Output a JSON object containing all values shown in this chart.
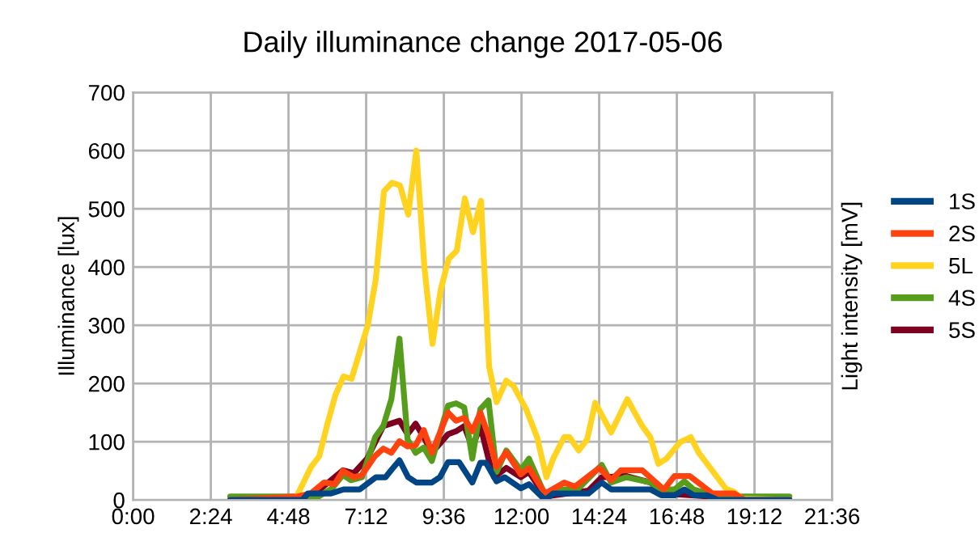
{
  "chart_data": {
    "type": "line",
    "title": "Daily illuminance change 2017-05-06",
    "ylabel": "Illuminance [lux]",
    "y2label": "Light intensity [mV]",
    "xlim": [
      0,
      21.6
    ],
    "xticks": [
      {
        "value": 0,
        "label": "0:00"
      },
      {
        "value": 2.4,
        "label": "2:24"
      },
      {
        "value": 4.8,
        "label": "4:48"
      },
      {
        "value": 7.2,
        "label": "7:12"
      },
      {
        "value": 9.6,
        "label": "9:36"
      },
      {
        "value": 12,
        "label": "12:00"
      },
      {
        "value": 14.4,
        "label": "14:24"
      },
      {
        "value": 16.8,
        "label": "16:48"
      },
      {
        "value": 19.2,
        "label": "19:12"
      },
      {
        "value": 21.6,
        "label": "21:36"
      }
    ],
    "ylim": [
      0,
      700
    ],
    "yticks": [
      0,
      100,
      200,
      300,
      400,
      500,
      600,
      700
    ],
    "grid": true,
    "legend": "right",
    "marker": "none",
    "line_style": "solid",
    "series": [
      {
        "name": "1S",
        "color": "#004586",
        "x": [
          3.0,
          5.23,
          5.4,
          6.1,
          6.5,
          7.0,
          7.5,
          7.8,
          8.0,
          8.23,
          8.5,
          8.75,
          9.23,
          9.48,
          9.73,
          10.07,
          10.48,
          10.73,
          10.9,
          11.23,
          11.48,
          11.98,
          12.23,
          12.73,
          12.98,
          14.07,
          14.48,
          14.77,
          15.98,
          16.32,
          16.73,
          17.03,
          17.32,
          17.73,
          18.07,
          20.28
        ],
        "values": [
          0,
          0,
          11,
          11,
          18,
          18,
          39,
          39,
          53,
          68,
          39,
          30,
          30,
          39,
          65,
          65,
          30,
          64,
          64,
          32,
          39,
          20,
          27,
          0,
          11,
          11,
          30,
          18,
          18,
          8,
          8,
          18,
          8,
          8,
          0,
          0
        ]
      },
      {
        "name": "2S",
        "color": "#ff420e",
        "x": [
          3.0,
          5.07,
          5.48,
          5.9,
          6.23,
          6.48,
          6.82,
          7.07,
          7.48,
          7.73,
          7.98,
          8.23,
          8.48,
          8.73,
          8.98,
          9.23,
          9.73,
          9.98,
          10.23,
          10.48,
          10.73,
          10.98,
          11.23,
          11.53,
          11.98,
          12.23,
          12.73,
          13.32,
          13.65,
          14.4,
          14.77,
          15.07,
          15.73,
          16.4,
          16.73,
          17.2,
          17.9,
          18.57,
          18.9,
          20.28
        ],
        "values": [
          0,
          6,
          11,
          30,
          27,
          50,
          39,
          43,
          76,
          88,
          81,
          101,
          92,
          94,
          120,
          81,
          150,
          136,
          141,
          118,
          150,
          110,
          57,
          82,
          44,
          55,
          11,
          30,
          23,
          55,
          34,
          51,
          51,
          18,
          41,
          41,
          11,
          11,
          0,
          0
        ]
      },
      {
        "name": "5L",
        "color": "#ffd320",
        "x": [
          3.0,
          5.0,
          5.5,
          5.75,
          6.0,
          6.25,
          6.5,
          6.75,
          7.25,
          7.5,
          7.75,
          8.0,
          8.25,
          8.5,
          8.75,
          9.0,
          9.25,
          9.5,
          9.75,
          10.0,
          10.25,
          10.5,
          10.75,
          11.0,
          11.23,
          11.53,
          11.75,
          12.15,
          12.48,
          12.77,
          12.98,
          13.32,
          13.48,
          13.77,
          14.03,
          14.28,
          14.77,
          15.27,
          15.73,
          15.98,
          16.23,
          16.48,
          16.9,
          17.23,
          17.48,
          17.98,
          18.32,
          18.57,
          18.82,
          20.28
        ],
        "values": [
          0,
          0,
          57,
          75,
          130,
          180,
          212,
          208,
          300,
          380,
          530,
          545,
          540,
          490,
          600,
          400,
          268,
          360,
          414,
          428,
          518,
          460,
          514,
          229,
          168,
          205,
          196,
          155,
          108,
          39,
          71,
          108,
          108,
          85,
          104,
          167,
          116,
          173,
          127,
          108,
          62,
          71,
          99,
          108,
          81,
          44,
          19,
          14,
          2,
          0
        ]
      },
      {
        "name": "4S",
        "color": "#579d1c",
        "x": [
          3.0,
          5.73,
          6.15,
          6.48,
          6.73,
          7.07,
          7.48,
          7.73,
          7.98,
          8.23,
          8.48,
          8.73,
          8.98,
          9.23,
          9.73,
          9.98,
          10.23,
          10.48,
          10.73,
          10.98,
          11.23,
          11.53,
          11.98,
          12.23,
          12.73,
          13.23,
          13.73,
          14.48,
          14.77,
          15.23,
          15.98,
          16.32,
          16.73,
          17.03,
          17.32,
          18.07,
          20.28
        ],
        "values": [
          6,
          6,
          20,
          43,
          34,
          39,
          108,
          127,
          173,
          277,
          104,
          81,
          90,
          67,
          162,
          166,
          159,
          71,
          156,
          171,
          48,
          85,
          51,
          71,
          8,
          18,
          18,
          60,
          30,
          39,
          30,
          18,
          18,
          32,
          18,
          6,
          6
        ]
      },
      {
        "name": "5S",
        "color": "#7e0021",
        "x": [
          5.07,
          5.73,
          6.48,
          6.82,
          7.23,
          7.73,
          8.23,
          8.48,
          8.73,
          8.98,
          9.23,
          9.73,
          9.98,
          10.23,
          10.48,
          10.73,
          10.98,
          11.15,
          11.53,
          11.98,
          12.23,
          12.73,
          14.07,
          14.48,
          15.23,
          15.98,
          16.4,
          18.07,
          18.9
        ],
        "values": [
          2,
          16,
          51,
          46,
          71,
          127,
          136,
          113,
          131,
          108,
          81,
          113,
          118,
          127,
          90,
          127,
          71,
          39,
          55,
          39,
          48,
          6,
          16,
          39,
          41,
          30,
          11,
          5,
          0
        ]
      }
    ]
  }
}
